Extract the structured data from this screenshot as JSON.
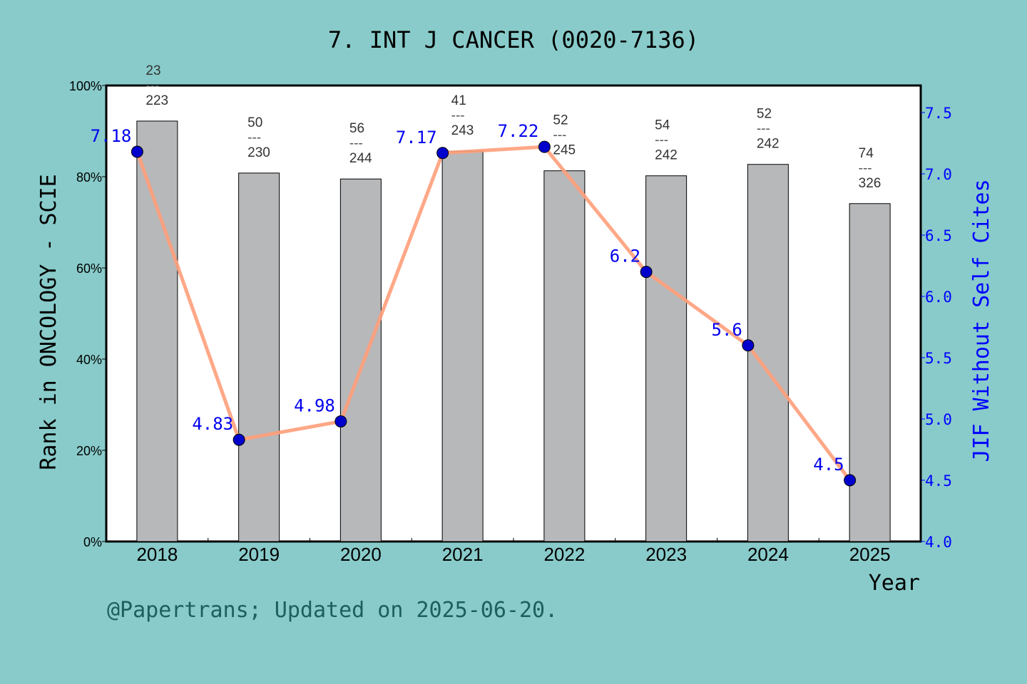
{
  "chart_data": {
    "type": "bar+line",
    "title": "7.  INT J CANCER (0020-7136)",
    "xlabel": "Year",
    "ylabel_left": "Rank in ONCOLOGY - SCIE",
    "ylabel_right": "JIF Without Self Cites",
    "categories": [
      "2018",
      "2019",
      "2020",
      "2021",
      "2022",
      "2023",
      "2024",
      "2025"
    ],
    "left_axis": {
      "ylim": [
        0,
        100
      ],
      "ticks": [
        "0%",
        "20%",
        "40%",
        "60%",
        "80%",
        "100%"
      ],
      "tick_values": [
        0,
        20,
        40,
        60,
        80,
        100
      ]
    },
    "right_axis": {
      "ylim": [
        4.0,
        7.7
      ],
      "ticks": [
        "4.0",
        "4.5",
        "5.0",
        "5.5",
        "6.0",
        "6.5",
        "7.0",
        "7.5"
      ],
      "tick_values": [
        4.0,
        4.5,
        5.0,
        5.5,
        6.0,
        6.5,
        7.0,
        7.5
      ],
      "color": "#0000ff"
    },
    "bars": {
      "values": [
        92.2,
        80.8,
        79.5,
        85.6,
        81.3,
        80.2,
        82.7,
        74.1
      ],
      "rank": [
        "23",
        "50",
        "56",
        "41",
        "52",
        "54",
        "52",
        "74"
      ],
      "total": [
        "223",
        "230",
        "244",
        "243",
        "245",
        "242",
        "242",
        "326"
      ],
      "separator": "---",
      "color": "#b7b8ba"
    },
    "line": {
      "values": [
        7.18,
        4.83,
        4.98,
        7.17,
        7.22,
        6.2,
        5.6,
        4.5
      ],
      "labels": [
        "7.18",
        "4.83",
        "4.98",
        "7.17",
        "7.22",
        "6.2",
        "5.6",
        "4.5"
      ],
      "line_color": "#ff9e7a",
      "marker_color": "#0000cc",
      "label_color": "#0000ee"
    },
    "grid": false
  },
  "footer": "@Papertrans; Updated on 2025-06-20."
}
